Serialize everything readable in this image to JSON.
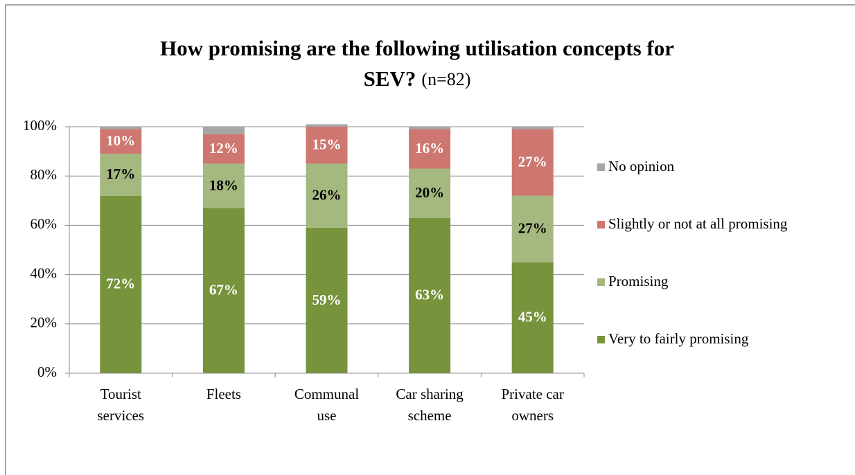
{
  "chart_data": {
    "type": "stacked_bar",
    "title": "How promising are the following utilisation concepts for SEV?",
    "subtitle": "(n=82)",
    "categories": [
      "Tourist services",
      "Fleets",
      "Communal use",
      "Car sharing scheme",
      "Private car owners"
    ],
    "series": [
      {
        "name": "Very to fairly promising",
        "color": "#77933c",
        "label_color": "#ffffff",
        "values": [
          72,
          67,
          59,
          63,
          45
        ],
        "value_labels": [
          "72%",
          "67%",
          "59%",
          "63%",
          "45%"
        ]
      },
      {
        "name": "Promising",
        "color": "#a5b880",
        "label_color": "#000000",
        "values": [
          17,
          18,
          26,
          20,
          27
        ],
        "value_labels": [
          "17%",
          "18%",
          "26%",
          "20%",
          "27%"
        ]
      },
      {
        "name": "Slightly or not at all promising",
        "color": "#cd7770",
        "label_color": "#ffffff",
        "values": [
          10,
          12,
          15,
          16,
          27
        ],
        "value_labels": [
          "10%",
          "12%",
          "15%",
          "16%",
          "27%"
        ]
      },
      {
        "name": "No opinion",
        "color": "#a6a6a6",
        "values": [
          1,
          3,
          1,
          1,
          1
        ]
      }
    ],
    "ylim": [
      0,
      100
    ],
    "yticks": [
      {
        "value": 0,
        "label": "0%"
      },
      {
        "value": 20,
        "label": "20%"
      },
      {
        "value": 40,
        "label": "40%"
      },
      {
        "value": 60,
        "label": "60%"
      },
      {
        "value": 80,
        "label": "80%"
      },
      {
        "value": 100,
        "label": "100%"
      }
    ],
    "grid": true,
    "legend": "right"
  }
}
